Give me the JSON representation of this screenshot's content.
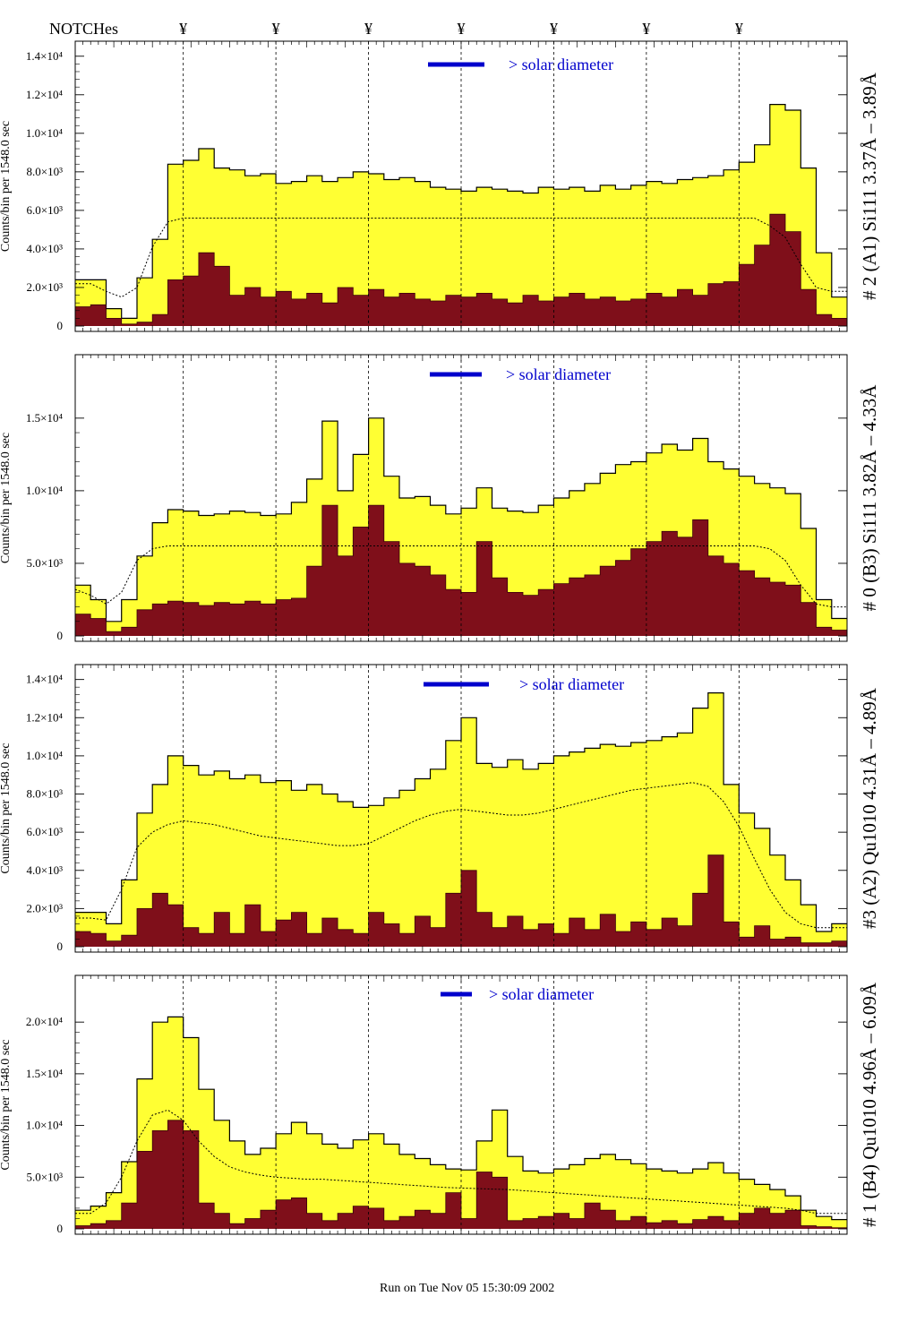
{
  "header": {
    "notches_label": "NOTCHes",
    "notch_symbol": "¥"
  },
  "footer": {
    "run_text": "Run on Tue Nov 05 15:30:09 2002"
  },
  "colors": {
    "envelope_fill": "#ffff33",
    "foreground_fill": "#7f0f1a",
    "outline": "#000000",
    "legend_bar": "#0000cc",
    "legend_text": "#0000cc"
  },
  "chart_data": [
    {
      "type": "area",
      "title": "# 2 (A1) Si111  3.37Å – 3.89Å",
      "ylabel": "Counts/bin per   1548.0 sec",
      "legend": "> solar diameter",
      "yticks": [
        "0",
        "2.0×10³",
        "4.0×10³",
        "6.0×10³",
        "8.0×10³",
        "1.0×10⁴",
        "1.2×10⁴",
        "1.4×10⁴"
      ],
      "ylim": [
        0,
        14500
      ],
      "xlim": [
        0,
        100
      ],
      "notch_x": [
        14,
        26,
        38,
        50,
        62,
        74,
        86
      ],
      "x": [
        0,
        2,
        4,
        6,
        8,
        10,
        12,
        14,
        16,
        18,
        20,
        22,
        24,
        26,
        28,
        30,
        32,
        34,
        36,
        38,
        40,
        42,
        44,
        46,
        48,
        50,
        52,
        54,
        56,
        58,
        60,
        62,
        64,
        66,
        68,
        70,
        72,
        74,
        76,
        78,
        80,
        82,
        84,
        86,
        88,
        90,
        92,
        94,
        96,
        98,
        100
      ],
      "series": [
        {
          "values": [
            2400,
            2400,
            900,
            400,
            2500,
            4500,
            8400,
            8600,
            9200,
            8200,
            8100,
            7800,
            7900,
            7400,
            7500,
            7800,
            7500,
            7700,
            8000,
            7900,
            7600,
            7700,
            7500,
            7200,
            7100,
            7000,
            7200,
            7100,
            7000,
            6900,
            7200,
            7100,
            7200,
            7000,
            7300,
            7100,
            7300,
            7500,
            7400,
            7600,
            7700,
            7800,
            8100,
            8500,
            9400,
            11500,
            11200,
            8200,
            3800,
            1500,
            1200
          ]
        },
        {
          "values": [
            1000,
            1100,
            400,
            100,
            200,
            600,
            2400,
            2600,
            3800,
            3100,
            1600,
            2000,
            1500,
            1800,
            1400,
            1700,
            1200,
            2000,
            1600,
            1900,
            1500,
            1700,
            1400,
            1300,
            1600,
            1500,
            1700,
            1400,
            1200,
            1600,
            1300,
            1500,
            1700,
            1400,
            1500,
            1300,
            1400,
            1700,
            1500,
            1900,
            1600,
            2200,
            2300,
            3200,
            4200,
            5800,
            4900,
            1900,
            600,
            400,
            200
          ]
        },
        {
          "values": [
            2200,
            2200,
            1800,
            1500,
            2000,
            4100,
            5400,
            5600,
            5600,
            5600,
            5600,
            5600,
            5600,
            5600,
            5600,
            5600,
            5600,
            5600,
            5600,
            5600,
            5600,
            5600,
            5600,
            5600,
            5600,
            5600,
            5600,
            5600,
            5600,
            5600,
            5600,
            5600,
            5600,
            5600,
            5600,
            5600,
            5600,
            5600,
            5600,
            5600,
            5600,
            5600,
            5600,
            5600,
            5600,
            5200,
            4600,
            3200,
            2000,
            1800,
            1800
          ]
        }
      ]
    },
    {
      "type": "area",
      "title": "# 0 (B3) Si111  3.82Å – 4.33Å",
      "ylabel": "Counts/bin per   1548.0 sec",
      "legend": "> solar diameter",
      "yticks": [
        "0",
        "5.0×10³",
        "1.0×10⁴",
        "1.5×10⁴"
      ],
      "ylim": [
        0,
        19000
      ],
      "xlim": [
        0,
        100
      ],
      "notch_x": [
        14,
        26,
        38,
        50,
        62,
        74,
        86
      ],
      "x": [
        0,
        2,
        4,
        6,
        8,
        10,
        12,
        14,
        16,
        18,
        20,
        22,
        24,
        26,
        28,
        30,
        32,
        34,
        36,
        38,
        40,
        42,
        44,
        46,
        48,
        50,
        52,
        54,
        56,
        58,
        60,
        62,
        64,
        66,
        68,
        70,
        72,
        74,
        76,
        78,
        80,
        82,
        84,
        86,
        88,
        90,
        92,
        94,
        96,
        98,
        100
      ],
      "series": [
        {
          "values": [
            3500,
            2500,
            1000,
            2500,
            5500,
            7800,
            8700,
            8600,
            8300,
            8400,
            8600,
            8500,
            8300,
            8400,
            9200,
            10800,
            14800,
            10000,
            12500,
            15000,
            11000,
            9500,
            9600,
            9000,
            8400,
            8800,
            10200,
            8800,
            8600,
            8500,
            9000,
            9500,
            10000,
            10500,
            11200,
            11800,
            12000,
            12600,
            13200,
            12800,
            13600,
            12000,
            11500,
            11000,
            10500,
            10200,
            9800,
            7400,
            2500,
            1200,
            800
          ]
        },
        {
          "values": [
            1500,
            1200,
            300,
            600,
            1800,
            2200,
            2400,
            2300,
            2100,
            2300,
            2200,
            2400,
            2200,
            2500,
            2600,
            4800,
            9000,
            5500,
            7500,
            9000,
            6500,
            5000,
            4800,
            4200,
            3200,
            3000,
            6500,
            4000,
            3000,
            2800,
            3200,
            3600,
            4000,
            4200,
            4800,
            5200,
            6000,
            6500,
            7200,
            6800,
            8000,
            5500,
            5000,
            4500,
            4000,
            3700,
            3500,
            2300,
            600,
            400,
            200
          ]
        },
        {
          "values": [
            3200,
            2800,
            2200,
            3000,
            5200,
            6000,
            6200,
            6200,
            6200,
            6200,
            6200,
            6200,
            6200,
            6200,
            6200,
            6200,
            6200,
            6200,
            6200,
            6200,
            6200,
            6200,
            6200,
            6200,
            6200,
            6200,
            6200,
            6200,
            6200,
            6200,
            6200,
            6200,
            6200,
            6200,
            6200,
            6200,
            6200,
            6200,
            6200,
            6200,
            6200,
            6200,
            6200,
            6200,
            6200,
            6000,
            5200,
            3500,
            2200,
            2000,
            2000
          ]
        }
      ]
    },
    {
      "type": "area",
      "title": "#3 (A2) Qu1010  4.31Å – 4.89Å",
      "ylabel": "Counts/bin per   1548.0 sec",
      "legend": "> solar diameter",
      "yticks": [
        "0",
        "2.0×10³",
        "4.0×10³",
        "6.0×10³",
        "8.0×10³",
        "1.0×10⁴",
        "1.2×10⁴",
        "1.4×10⁴"
      ],
      "ylim": [
        0,
        14500
      ],
      "xlim": [
        0,
        100
      ],
      "notch_x": [
        14,
        26,
        38,
        50,
        62,
        74,
        86
      ],
      "x": [
        0,
        2,
        4,
        6,
        8,
        10,
        12,
        14,
        16,
        18,
        20,
        22,
        24,
        26,
        28,
        30,
        32,
        34,
        36,
        38,
        40,
        42,
        44,
        46,
        48,
        50,
        52,
        54,
        56,
        58,
        60,
        62,
        64,
        66,
        68,
        70,
        72,
        74,
        76,
        78,
        80,
        82,
        84,
        86,
        88,
        90,
        92,
        94,
        96,
        98,
        100
      ],
      "series": [
        {
          "values": [
            1800,
            1800,
            1200,
            3500,
            7000,
            8500,
            10000,
            9500,
            9000,
            9200,
            8800,
            9000,
            8600,
            8700,
            8200,
            8500,
            8000,
            7600,
            7300,
            7400,
            7800,
            8200,
            8800,
            9300,
            10800,
            12000,
            9600,
            9400,
            9800,
            9300,
            9600,
            10000,
            10200,
            10400,
            10600,
            10500,
            10700,
            10800,
            11000,
            11200,
            12500,
            13300,
            8500,
            7000,
            6200,
            4800,
            3500,
            2200,
            800,
            1200,
            1200
          ]
        },
        {
          "values": [
            800,
            700,
            300,
            600,
            2000,
            2800,
            2200,
            1000,
            700,
            1800,
            700,
            2200,
            800,
            1400,
            1800,
            700,
            1500,
            900,
            700,
            1800,
            1200,
            700,
            1600,
            1000,
            2800,
            4000,
            1800,
            1000,
            1600,
            900,
            1200,
            700,
            1500,
            900,
            1700,
            800,
            1300,
            900,
            1500,
            1100,
            2800,
            4800,
            1300,
            500,
            1100,
            400,
            500,
            200,
            200,
            300,
            200
          ]
        },
        {
          "values": [
            1500,
            1500,
            1400,
            3000,
            5200,
            6000,
            6400,
            6600,
            6500,
            6400,
            6200,
            6000,
            5800,
            5700,
            5600,
            5500,
            5400,
            5300,
            5300,
            5400,
            5800,
            6200,
            6600,
            6900,
            7100,
            7200,
            7100,
            7000,
            6900,
            6900,
            7000,
            7200,
            7400,
            7600,
            7800,
            8000,
            8200,
            8300,
            8400,
            8500,
            8600,
            8400,
            7600,
            6300,
            4600,
            3000,
            1800,
            1200,
            1000,
            1000,
            1000
          ]
        }
      ]
    },
    {
      "type": "area",
      "title": "# 1 (B4) Qu1010 4.96Å – 6.09Å",
      "ylabel": "Counts/bin per   1548.0 sec",
      "legend": "> solar diameter",
      "yticks": [
        "0",
        "5.0×10³",
        "1.0×10⁴",
        "1.5×10⁴",
        "2.0×10⁴"
      ],
      "ylim": [
        0,
        24000
      ],
      "xlim": [
        0,
        100
      ],
      "notch_x": [
        14,
        26,
        38,
        50,
        62,
        74,
        86
      ],
      "x": [
        0,
        2,
        4,
        6,
        8,
        10,
        12,
        14,
        16,
        18,
        20,
        22,
        24,
        26,
        28,
        30,
        32,
        34,
        36,
        38,
        40,
        42,
        44,
        46,
        48,
        50,
        52,
        54,
        56,
        58,
        60,
        62,
        64,
        66,
        68,
        70,
        72,
        74,
        76,
        78,
        80,
        82,
        84,
        86,
        88,
        90,
        92,
        94,
        96,
        98,
        100
      ],
      "series": [
        {
          "values": [
            1800,
            2200,
            3500,
            6500,
            14500,
            20000,
            20500,
            18500,
            13500,
            10500,
            8500,
            7200,
            7800,
            9200,
            10300,
            9200,
            8200,
            7800,
            8600,
            9200,
            8200,
            7200,
            6800,
            6200,
            5800,
            5700,
            8500,
            11500,
            7000,
            5600,
            5400,
            5800,
            6200,
            6800,
            7200,
            6700,
            6300,
            5800,
            5600,
            5400,
            5800,
            6400,
            5400,
            4800,
            4300,
            3800,
            3200,
            1800,
            1200,
            900,
            1800
          ]
        },
        {
          "values": [
            300,
            500,
            800,
            2500,
            7500,
            9500,
            10500,
            9500,
            2500,
            1500,
            500,
            1000,
            1800,
            2800,
            3000,
            1500,
            800,
            1500,
            2200,
            2000,
            800,
            1200,
            1800,
            1500,
            3500,
            1000,
            5500,
            5000,
            800,
            1000,
            1200,
            1500,
            1000,
            2500,
            1800,
            800,
            1200,
            600,
            800,
            500,
            900,
            1200,
            800,
            1500,
            2000,
            1500,
            1800,
            300,
            200,
            100,
            200
          ]
        },
        {
          "values": [
            1500,
            1500,
            2500,
            5000,
            8500,
            11000,
            11500,
            10500,
            8500,
            7000,
            6000,
            5500,
            5200,
            5000,
            4900,
            4800,
            4800,
            4700,
            4600,
            4500,
            4400,
            4300,
            4200,
            4100,
            4000,
            3950,
            3900,
            3850,
            3800,
            3700,
            3600,
            3500,
            3400,
            3300,
            3200,
            3100,
            3000,
            2900,
            2800,
            2700,
            2600,
            2500,
            2400,
            2300,
            2200,
            2100,
            2000,
            1800,
            1500,
            1500,
            1500
          ]
        }
      ]
    }
  ]
}
